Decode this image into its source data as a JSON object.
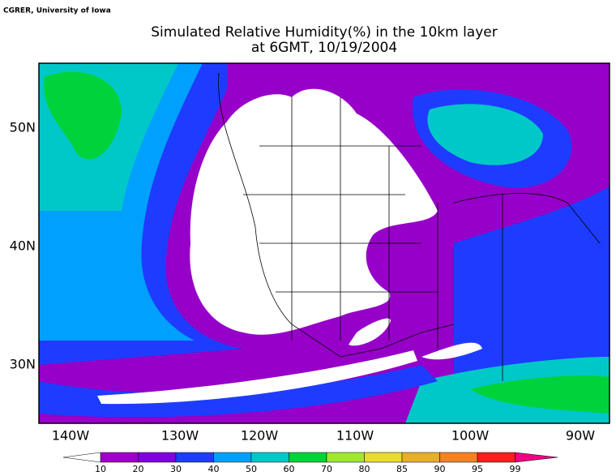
{
  "credit": "CGRER, University of Iowa",
  "title": [
    "Simulated Relative Humidity(%) in the 10km layer",
    "at 6GMT, 10/19/2004"
  ],
  "latitude_labels": [
    "50N",
    "40N",
    "30N"
  ],
  "longitude_labels": [
    "140W",
    "130W",
    "120W",
    "110W",
    "100W",
    "90W"
  ],
  "colorbar": {
    "labels": [
      10,
      20,
      30,
      40,
      50,
      60,
      70,
      80,
      85,
      90,
      95,
      99
    ],
    "colors": [
      "#ffffff",
      "#a000c8",
      "#8200dc",
      "#1e3cff",
      "#00a0ff",
      "#00c8c8",
      "#00d23c",
      "#a0e632",
      "#e6dc32",
      "#e6af2d",
      "#f08228",
      "#fa1e1e",
      "#f00082"
    ]
  }
}
